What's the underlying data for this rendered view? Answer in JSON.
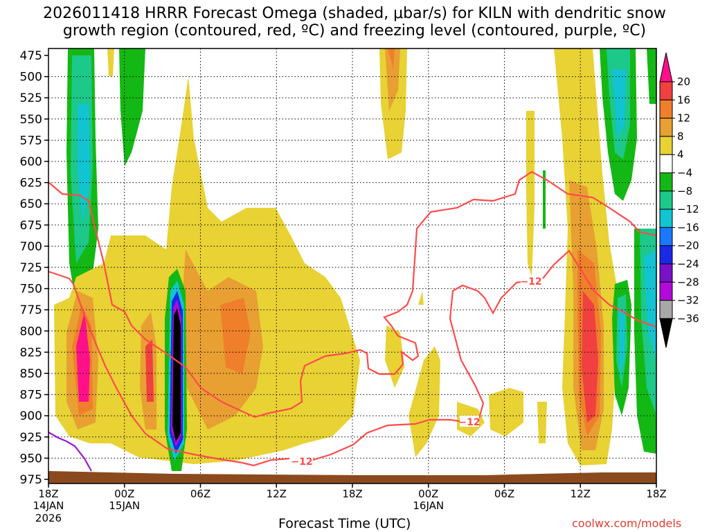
{
  "chart_data": {
    "type": "heatmap",
    "title_line1": "2026011418 HRRR Forecast Omega (shaded, μbar/s) for KILN with dendritic snow",
    "title_line2": "growth region (contoured, red, ºC) and freezing level (contoured, purple, ºC)",
    "xlabel": "Forecast Time (UTC)",
    "credit": "coolwx.com/models",
    "y_ticks": [
      475,
      500,
      525,
      550,
      575,
      600,
      625,
      650,
      675,
      700,
      725,
      750,
      775,
      800,
      825,
      850,
      875,
      900,
      925,
      950,
      975
    ],
    "y_range": [
      475,
      975
    ],
    "x_hours": [
      0,
      6,
      12,
      18,
      24,
      30,
      36,
      42,
      48
    ],
    "x_tick_labels": [
      "18Z",
      "00Z",
      "06Z",
      "12Z",
      "18Z",
      "00Z",
      "06Z",
      "12Z",
      "18Z"
    ],
    "x_date_labels": [
      {
        "hour": 0,
        "line1": "14JAN",
        "line2": "2026"
      },
      {
        "hour": 6,
        "line1": "15JAN"
      },
      {
        "hour": 30,
        "line1": "16JAN"
      }
    ],
    "x_range": [
      0,
      48
    ],
    "colorbar": {
      "labels": [
        "20",
        "16",
        "12",
        "8",
        "4",
        "−4",
        "−8",
        "−12",
        "−16",
        "−20",
        "−24",
        "−28",
        "−32",
        "−36"
      ],
      "colors": [
        "#ff0f8a",
        "#f04040",
        "#ef7f2a",
        "#e8a032",
        "#e8d234",
        "#ffffff",
        "#14b814",
        "#1cc88a",
        "#12c4d2",
        "#1a78ff",
        "#1a28e8",
        "#7a10c8",
        "#b20ad8",
        "#a8a8a8",
        "#000000"
      ]
    },
    "contours": {
      "dgz_color": "#ff4a4a",
      "dgz_label": "−12",
      "freezing_color": "#9a1ad2"
    },
    "terrain_color": "#8b4a1e"
  }
}
